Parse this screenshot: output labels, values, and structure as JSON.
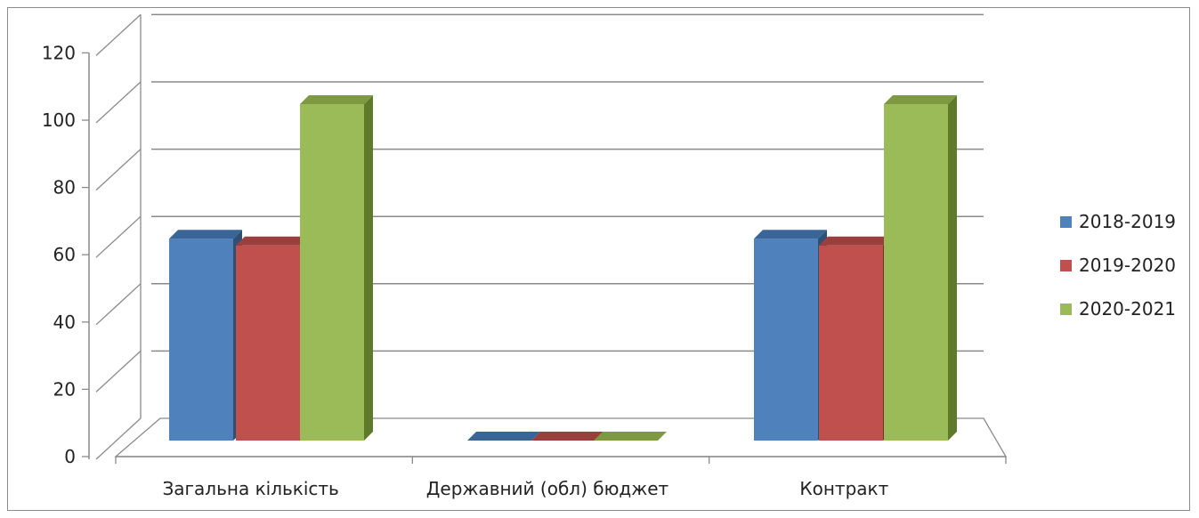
{
  "chart_data": {
    "type": "bar",
    "categories": [
      "Загальна кількість",
      "Державний (обл) бюджет",
      "Контракт"
    ],
    "series": [
      {
        "name": "2018-2019",
        "color": "#4F81BD",
        "side": "#2F4F75",
        "top": "#3A6599",
        "values": [
          60,
          0,
          60
        ]
      },
      {
        "name": "2019-2020",
        "color": "#C0504D",
        "side": "#7A2F2D",
        "top": "#9B3F3C",
        "values": [
          58,
          0,
          58
        ]
      },
      {
        "name": "2020-2021",
        "color": "#9BBB59",
        "side": "#5E7A2A",
        "top": "#7D9A41",
        "values": [
          100,
          0,
          100
        ]
      }
    ],
    "yticks": [
      0,
      20,
      40,
      60,
      80,
      100,
      120
    ],
    "ylim": [
      0,
      120
    ],
    "grid": true,
    "legend": "right"
  }
}
